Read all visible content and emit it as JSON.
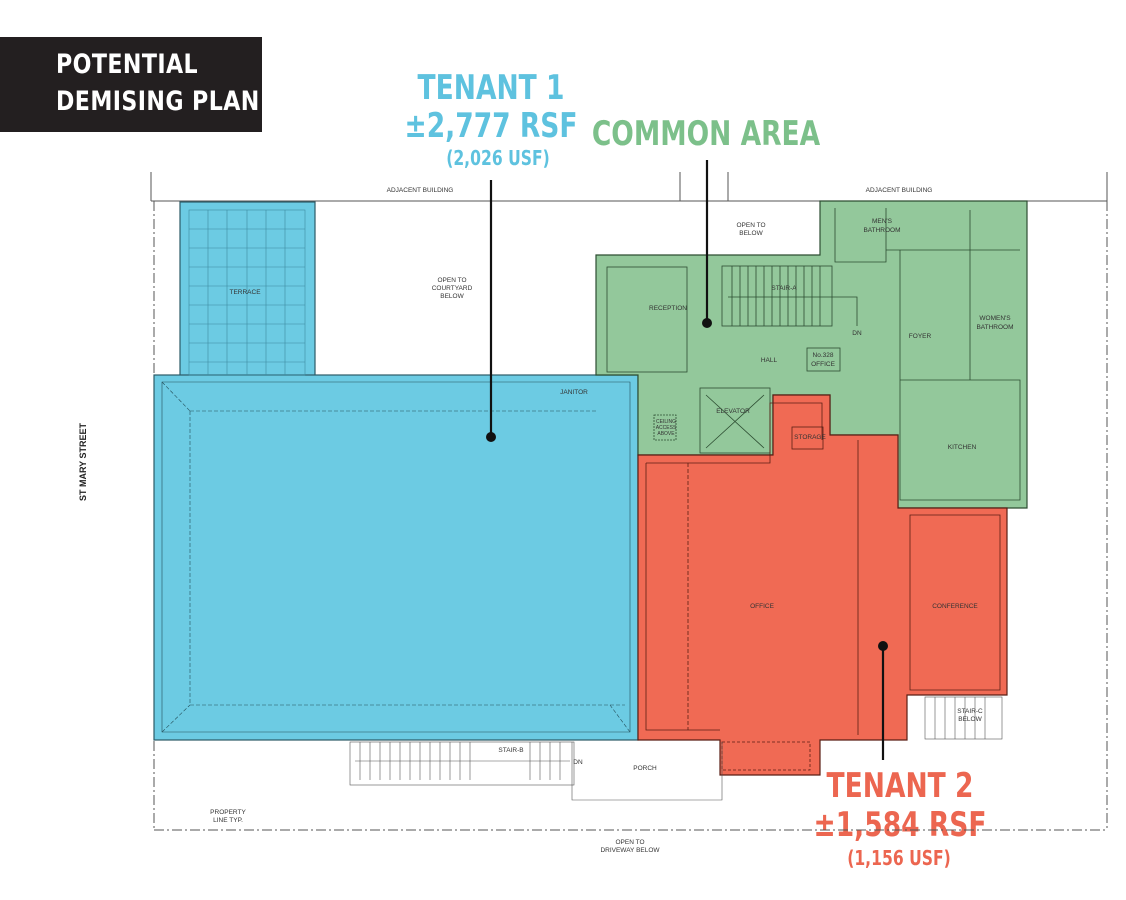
{
  "title": {
    "line1": "POTENTIAL",
    "line2": "DEMISING PLAN"
  },
  "tenant1": {
    "name": "TENANT 1",
    "rsf": "±2,777 RSF",
    "usf": "(2,026 USF)",
    "color": "#6ccbe3",
    "text_color": "#5ec2df"
  },
  "common_area": {
    "name": "COMMON  AREA",
    "color": "#93c89b",
    "text_color": "#7cc08a"
  },
  "tenant2": {
    "name": "TENANT 2",
    "rsf": "±1,584 RSF",
    "usf": "(1,156 USF)",
    "color": "#f06a54",
    "text_color": "#ec6650"
  },
  "street": "ST MARY STREET",
  "rooms": {
    "adjacent_left": "ADJACENT BUILDING",
    "adjacent_right": "ADJACENT BUILDING",
    "terrace": "TERRACE",
    "open_courtyard": [
      "OPEN TO",
      "COURTYARD",
      "BELOW"
    ],
    "open_below": [
      "OPEN TO",
      "BELOW"
    ],
    "janitor": "JANITOR",
    "reception": "RECEPTION",
    "stair_a": "STAIR-A",
    "dn_a": "DN",
    "hall": "HALL",
    "office_328": [
      "No.328",
      "OFFICE"
    ],
    "mens": [
      "MEN'S",
      "BATHROOM"
    ],
    "womens": [
      "WOMEN'S",
      "BATHROOM"
    ],
    "foyer": "FOYER",
    "elevator": "ELEVATOR",
    "ceiling": [
      "CEILING",
      "ACCESS",
      "ABOVE"
    ],
    "storage": "STORAGE",
    "kitchen": "KITCHEN",
    "office": "OFFICE",
    "conference": "CONFERENCE",
    "stair_c": [
      "STAIR-C",
      "BELOW"
    ],
    "stair_b": "STAIR-B",
    "dn_b": "DN",
    "porch": "PORCH",
    "property": [
      "PROPERTY",
      "LINE TYP."
    ],
    "driveway": [
      "OPEN TO",
      "DRIVEWAY BELOW"
    ]
  }
}
